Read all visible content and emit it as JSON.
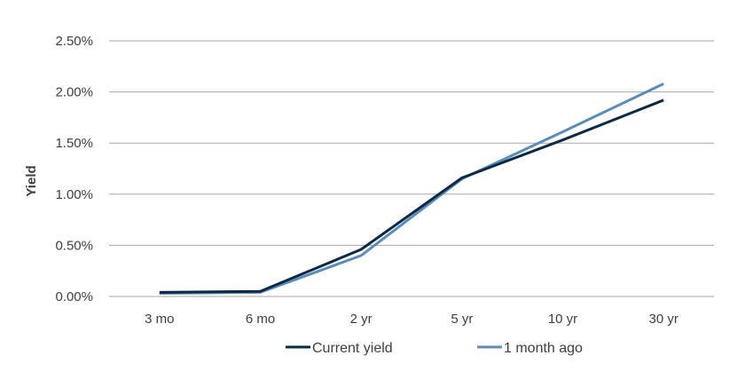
{
  "chart_data": {
    "type": "line",
    "title": "",
    "xlabel": "",
    "ylabel": "Yield",
    "categories": [
      "3 mo",
      "6 mo",
      "2 yr",
      "5 yr",
      "10 yr",
      "30 yr"
    ],
    "y_ticks": [
      "0.00%",
      "0.50%",
      "1.00%",
      "1.50%",
      "2.00%",
      "2.50%"
    ],
    "ylim": [
      0,
      2.5
    ],
    "grid": true,
    "legend_position": "bottom",
    "series": [
      {
        "name": "Current yield",
        "color": "#0d2a45",
        "values": [
          0.04,
          0.05,
          0.46,
          1.16,
          1.53,
          1.92
        ]
      },
      {
        "name": "1 month ago",
        "color": "#5b8db8",
        "values": [
          0.03,
          0.04,
          0.4,
          1.15,
          1.61,
          2.08
        ]
      }
    ]
  }
}
